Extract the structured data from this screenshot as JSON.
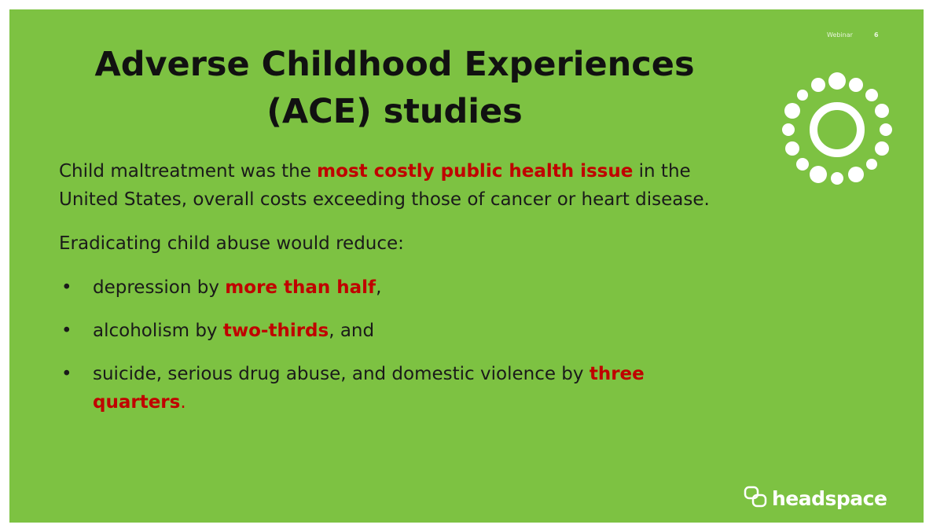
{
  "header": {
    "title": [
      "Adverse Childhood Experiences",
      "(ACE) studies"
    ],
    "label": "Webinar",
    "page_number": "6"
  },
  "body": {
    "paragraphs": [
      {
        "runs": [
          {
            "text": "Child maltreatment was the ",
            "color": "#1a1a1a",
            "bold": false
          },
          {
            "text": "most costly public health issue",
            "color": "#c00000",
            "bold": true
          },
          {
            "text": " in the United States, overall costs exceeding those of cancer or heart disease.",
            "color": "#1a1a1a",
            "bold": false
          }
        ]
      },
      {
        "runs": [
          {
            "text": "Eradicating child abuse would reduce:",
            "color": "#1a1a1a",
            "bold": false
          }
        ]
      }
    ],
    "bullets": [
      {
        "runs": [
          {
            "text": "depression by ",
            "color": "#1a1a1a",
            "bold": false
          },
          {
            "text": "more than half",
            "color": "#c00000",
            "bold": true
          },
          {
            "text": ",",
            "color": "#1a1a1a",
            "bold": false
          }
        ]
      },
      {
        "runs": [
          {
            "text": "alcoholism by ",
            "color": "#1a1a1a",
            "bold": false
          },
          {
            "text": "two-thirds",
            "color": "#c00000",
            "bold": true
          },
          {
            "text": ", and",
            "color": "#1a1a1a",
            "bold": false
          }
        ]
      },
      {
        "runs": [
          {
            "text": "suicide, serious drug abuse, and domestic violence by ",
            "color": "#1a1a1a",
            "bold": false
          },
          {
            "text": "three quarters",
            "color": "#c00000",
            "bold": true
          },
          {
            "text": ".",
            "color": "#c00000",
            "bold": false
          }
        ]
      }
    ]
  },
  "footer": {
    "brand": "headspace"
  }
}
